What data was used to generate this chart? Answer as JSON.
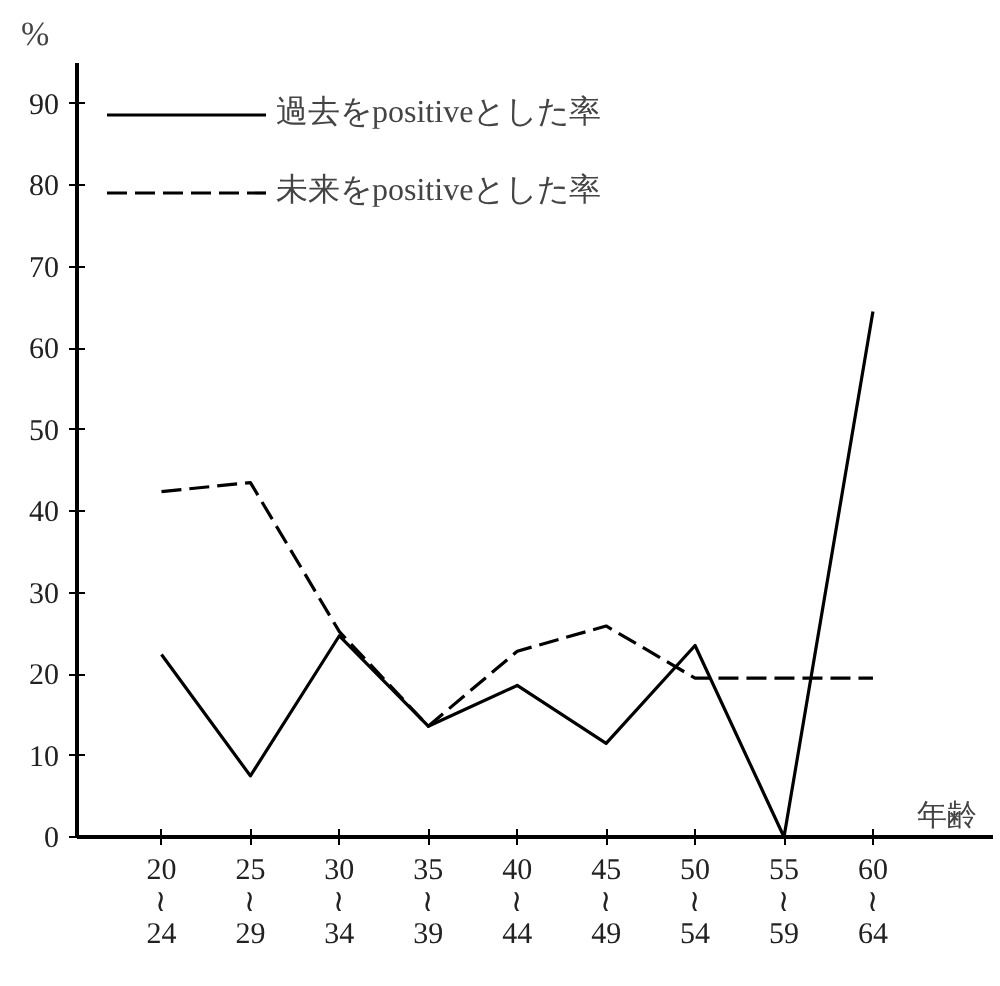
{
  "chart_data": {
    "type": "line",
    "ylabel": "%",
    "xlabel": "年齢",
    "categories": [
      "20\n≀\n24",
      "25\n≀\n29",
      "30\n≀\n34",
      "35\n≀\n39",
      "40\n≀\n44",
      "45\n≀\n49",
      "50\n≀\n54",
      "55\n≀\n59",
      "60\n≀\n64"
    ],
    "series": [
      {
        "name": "過去をpositiveとした率",
        "color": "#000000",
        "line_style": "solid",
        "values": [
          22.4,
          7.5,
          24.7,
          13.6,
          18.6,
          11.5,
          23.5,
          0,
          64.5
        ]
      },
      {
        "name": "未来をpositiveとした率",
        "color": "#000000",
        "line_style": "dashed",
        "values": [
          42.4,
          43.5,
          25.2,
          13.6,
          22.8,
          25.9,
          19.5,
          19.5,
          19.5
        ]
      }
    ],
    "ylim": [
      0,
      95
    ],
    "yticks": [
      0,
      10,
      20,
      30,
      40,
      50,
      60,
      70,
      80,
      90
    ],
    "grid": false,
    "legend": "top left",
    "marker": "none"
  }
}
